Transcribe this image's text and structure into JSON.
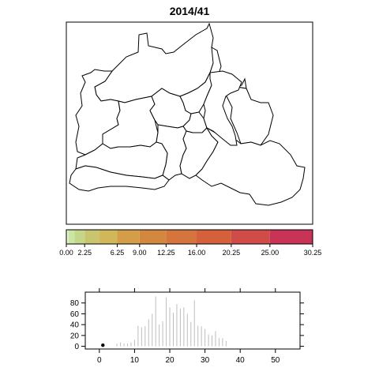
{
  "title": "2014/41",
  "map": {
    "highlight_color": "#c5e1a0",
    "highlighted_district": "district-east-central"
  },
  "color_scale": {
    "breaks": [
      0.0,
      0.25,
      1.0,
      2.25,
      4.0,
      6.25,
      9.0,
      12.25,
      16.0,
      20.25,
      25.0,
      30.25
    ],
    "labels": [
      "0.00",
      "2.25",
      "6.25",
      "9.00",
      "12.25",
      "16.00",
      "20.25",
      "25.00",
      "30.25"
    ],
    "label_values": [
      0.0,
      2.25,
      6.25,
      9.0,
      12.25,
      16.0,
      20.25,
      25.0,
      30.25
    ],
    "colors": [
      "#e6f5d0",
      "#cbe6a4",
      "#c3d68a",
      "#c9c46e",
      "#d0b85a",
      "#d39d4a",
      "#d38840",
      "#d5743c",
      "#d4603c",
      "#cf4c48",
      "#c83456"
    ]
  },
  "chart_data": {
    "type": "bar",
    "x_ticks": [
      0,
      10,
      20,
      30,
      40,
      50
    ],
    "y_ticks": [
      0,
      20,
      40,
      60,
      80
    ],
    "xlim": [
      -4,
      57
    ],
    "ylim": [
      -5,
      100
    ],
    "x": [
      1,
      2,
      3,
      4,
      5,
      6,
      7,
      8,
      9,
      10,
      11,
      12,
      13,
      14,
      15,
      16,
      17,
      18,
      19,
      20,
      21,
      22,
      23,
      24,
      25,
      26,
      27,
      28,
      29,
      30,
      31,
      32,
      33,
      34,
      35,
      36,
      37,
      38,
      39,
      40,
      41,
      42,
      43,
      44,
      45,
      46,
      47,
      48,
      49,
      50,
      51,
      52,
      53,
      54
    ],
    "values": [
      2,
      0,
      0,
      0,
      5,
      7,
      5,
      5,
      7,
      12,
      38,
      35,
      37,
      50,
      60,
      92,
      40,
      46,
      90,
      72,
      62,
      78,
      70,
      72,
      60,
      45,
      85,
      38,
      37,
      32,
      22,
      20,
      28,
      15,
      15,
      10,
      0,
      0,
      0,
      0,
      0,
      0,
      0,
      0,
      0,
      0,
      0,
      0,
      0,
      0,
      0,
      0,
      0,
      0
    ],
    "current_point": {
      "x": 1,
      "y": 2
    }
  }
}
